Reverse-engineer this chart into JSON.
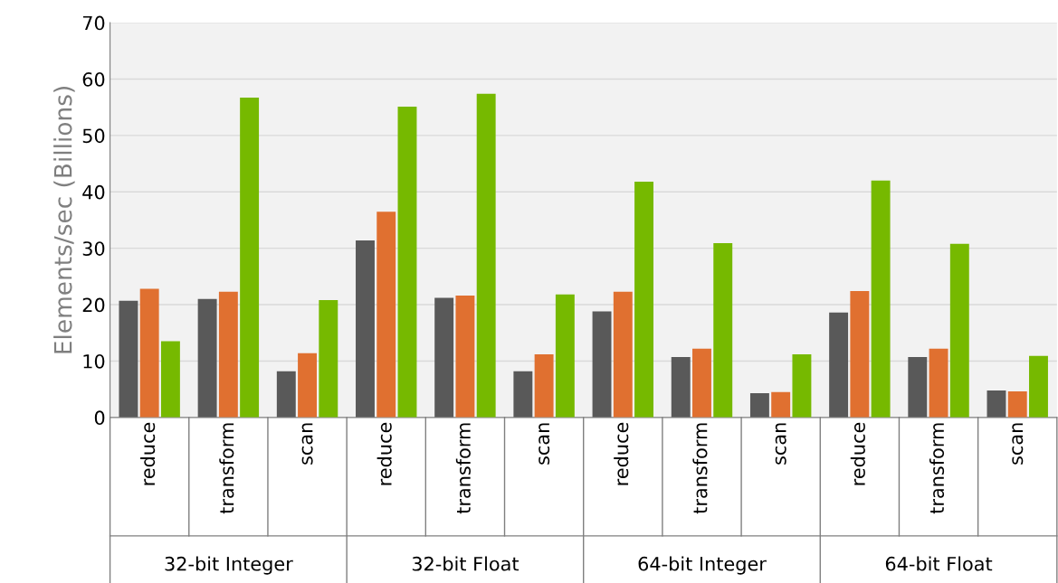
{
  "chart_data": {
    "type": "bar",
    "ylabel": "Elements/sec (Billions)",
    "categories": [
      "reduce",
      "transform",
      "scan",
      "reduce",
      "transform",
      "scan",
      "reduce",
      "transform",
      "scan",
      "reduce",
      "transform",
      "scan"
    ],
    "annotations": [
      "32-bit Integer",
      "32-bit Float",
      "64-bit Integer",
      "64-bit Float"
    ],
    "series": [
      {
        "color": "#595959",
        "values": [
          20.7,
          21.0,
          8.2,
          31.4,
          21.2,
          8.2,
          18.8,
          10.7,
          4.3,
          18.6,
          10.7,
          4.8
        ]
      },
      {
        "color": "#e07030",
        "values": [
          22.8,
          22.3,
          11.4,
          36.5,
          21.6,
          11.2,
          22.3,
          12.2,
          4.5,
          22.4,
          12.2,
          4.6
        ]
      },
      {
        "color": "#76b900",
        "values": [
          13.5,
          56.7,
          20.8,
          55.1,
          57.4,
          21.8,
          41.8,
          30.9,
          11.2,
          42.0,
          30.8,
          10.9
        ]
      }
    ],
    "ylim": [
      0,
      70
    ],
    "yticks": [
      0,
      10,
      20,
      30,
      40,
      50,
      60,
      70
    ],
    "grid": "y",
    "legend": false
  }
}
